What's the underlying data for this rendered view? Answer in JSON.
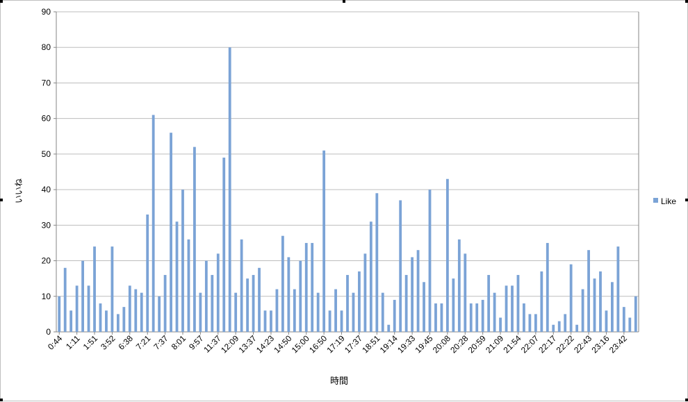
{
  "chart_data": {
    "type": "bar",
    "xlabel": "時間",
    "ylabel": "いいね",
    "ylim": [
      0,
      90
    ],
    "ytick_step": 10,
    "grid": true,
    "legend_position": "right",
    "series": [
      {
        "name": "Like",
        "color": "#7ba3d6",
        "values": [
          10,
          18,
          6,
          13,
          20,
          13,
          24,
          8,
          6,
          24,
          5,
          7,
          13,
          12,
          11,
          33,
          61,
          10,
          16,
          56,
          31,
          40,
          26,
          52,
          11,
          20,
          16,
          22,
          49,
          80,
          11,
          26,
          15,
          16,
          18,
          6,
          6,
          12,
          27,
          21,
          12,
          20,
          25,
          25,
          11,
          51,
          6,
          12,
          6,
          16,
          11,
          17,
          22,
          31,
          39,
          11,
          2,
          9,
          37,
          16,
          21,
          23,
          14,
          40,
          8,
          8,
          43,
          15,
          26,
          22,
          8,
          8,
          9,
          16,
          11,
          4,
          13,
          13,
          16,
          8,
          5,
          5,
          17,
          25,
          2,
          3,
          5,
          19,
          2,
          12,
          23,
          15,
          17,
          6,
          14,
          24,
          7,
          4,
          10
        ]
      }
    ],
    "tick_labels": [
      "0:44",
      "1:11",
      "1:51",
      "3:52",
      "6:38",
      "7:21",
      "7:37",
      "8:01",
      "9:57",
      "11:37",
      "12:09",
      "13:37",
      "14:23",
      "14:50",
      "15:00",
      "16:50",
      "17:19",
      "17:37",
      "18:51",
      "19:14",
      "19:33",
      "19:45",
      "20:08",
      "20:28",
      "20:59",
      "21:09",
      "21:54",
      "22:07",
      "22:17",
      "22:22",
      "22:43",
      "23:16",
      "23:42"
    ]
  }
}
